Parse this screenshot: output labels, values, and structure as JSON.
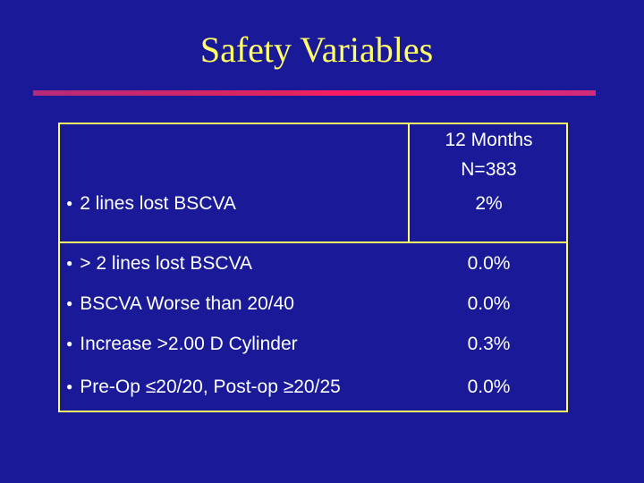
{
  "slide": {
    "title": "Safety Variables"
  },
  "table": {
    "header_line1": "12 Months",
    "header_line2": "N=383",
    "bullet_glyph": "●",
    "rows": [
      {
        "label": "2 lines lost BSCVA",
        "value": "2%"
      },
      {
        "label": "> 2 lines lost BSCVA",
        "value": "0.0%"
      },
      {
        "label": "BSCVA Worse than 20/40",
        "value": "0.0%"
      },
      {
        "label": "Increase >2.00 D Cylinder",
        "value": "0.3%"
      },
      {
        "label": "Pre-Op ≤20/20, Post-op ≥20/25",
        "value": "0.0%"
      }
    ]
  },
  "colors": {
    "background": "#1a1a99",
    "title": "#ffff66",
    "border": "#ffff66",
    "text": "#ffffff",
    "accent_rule": "#e0245e"
  }
}
